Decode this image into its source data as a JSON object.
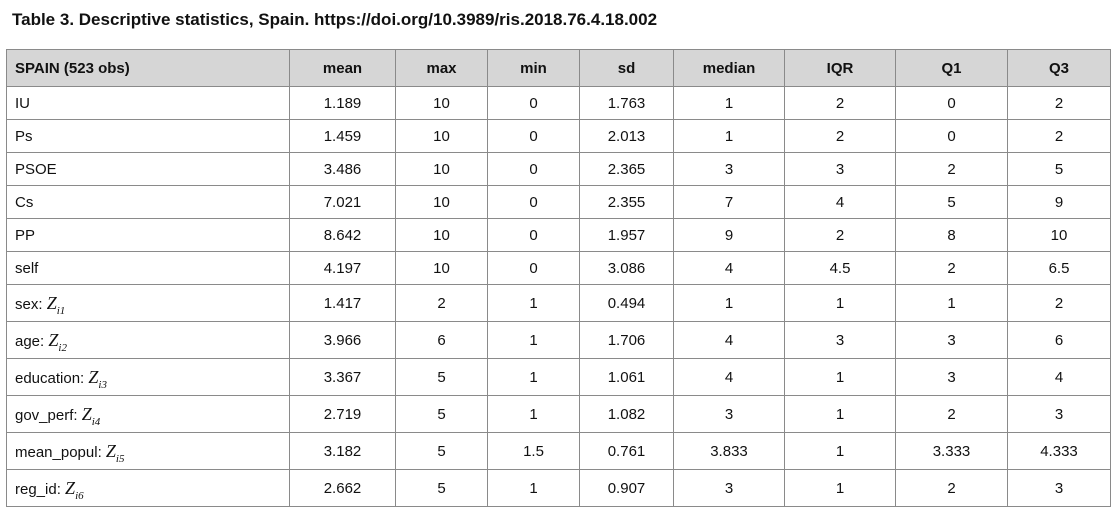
{
  "caption": "Table 3. Descriptive statistics, Spain. https://doi.org/10.3989/ris.2018.76.4.18.002",
  "columns": [
    "SPAIN (523 obs)",
    "mean",
    "max",
    "min",
    "sd",
    "median",
    "IQR",
    "Q1",
    "Q3"
  ],
  "rows": [
    {
      "label": "IU",
      "z": "",
      "sub": "",
      "values": [
        "1.189",
        "10",
        "0",
        "1.763",
        "1",
        "2",
        "0",
        "2"
      ]
    },
    {
      "label": "Ps",
      "z": "",
      "sub": "",
      "values": [
        "1.459",
        "10",
        "0",
        "2.013",
        "1",
        "2",
        "0",
        "2"
      ]
    },
    {
      "label": "PSOE",
      "z": "",
      "sub": "",
      "values": [
        "3.486",
        "10",
        "0",
        "2.365",
        "3",
        "3",
        "2",
        "5"
      ]
    },
    {
      "label": "Cs",
      "z": "",
      "sub": "",
      "values": [
        "7.021",
        "10",
        "0",
        "2.355",
        "7",
        "4",
        "5",
        "9"
      ]
    },
    {
      "label": "PP",
      "z": "",
      "sub": "",
      "values": [
        "8.642",
        "10",
        "0",
        "1.957",
        "9",
        "2",
        "8",
        "10"
      ]
    },
    {
      "label": "self",
      "z": "",
      "sub": "",
      "values": [
        "4.197",
        "10",
        "0",
        "3.086",
        "4",
        "4.5",
        "2",
        "6.5"
      ]
    },
    {
      "label": "sex: ",
      "z": "Z",
      "sub": "i1",
      "values": [
        "1.417",
        "2",
        "1",
        "0.494",
        "1",
        "1",
        "1",
        "2"
      ]
    },
    {
      "label": "age: ",
      "z": "Z",
      "sub": "i2",
      "values": [
        "3.966",
        "6",
        "1",
        "1.706",
        "4",
        "3",
        "3",
        "6"
      ]
    },
    {
      "label": "education: ",
      "z": "Z",
      "sub": "i3",
      "values": [
        "3.367",
        "5",
        "1",
        "1.061",
        "4",
        "1",
        "3",
        "4"
      ]
    },
    {
      "label": "gov_perf: ",
      "z": "Z",
      "sub": "i4",
      "values": [
        "2.719",
        "5",
        "1",
        "1.082",
        "3",
        "1",
        "2",
        "3"
      ]
    },
    {
      "label": "mean_popul: ",
      "z": "Z",
      "sub": "i5",
      "values": [
        "3.182",
        "5",
        "1.5",
        "0.761",
        "3.833",
        "1",
        "3.333",
        "4.333"
      ]
    },
    {
      "label": "reg_id: ",
      "z": "Z",
      "sub": "i6",
      "values": [
        "2.662",
        "5",
        "1",
        "0.907",
        "3",
        "1",
        "2",
        "3"
      ]
    }
  ]
}
